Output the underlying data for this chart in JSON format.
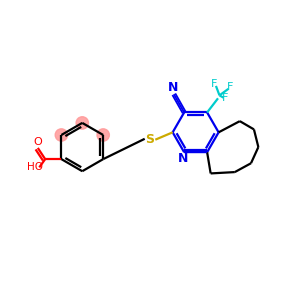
{
  "bg_color": "#ffffff",
  "bond_color": "#000000",
  "pyridine_color": "#0000ee",
  "cn_color": "#0000ee",
  "cf3_color": "#00cccc",
  "cooh_color": "#ff0000",
  "s_color": "#ccaa00",
  "benzene_highlight": "#ff9999",
  "lw": 1.6,
  "fig_size": [
    3.0,
    3.0
  ],
  "dpi": 100,
  "xlim": [
    0,
    10
  ],
  "ylim": [
    0,
    10
  ]
}
